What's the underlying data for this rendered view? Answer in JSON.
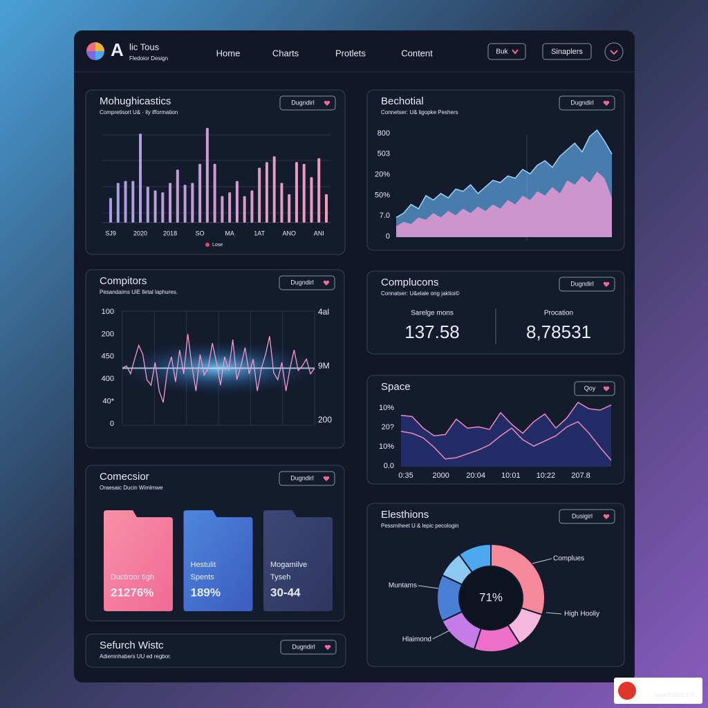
{
  "header": {
    "logo_letter": "A",
    "title": "lic Tous",
    "subtitle": "Fledoior Design",
    "nav": [
      "Home",
      "Charts",
      "Protlets",
      "Content"
    ],
    "buttons": [
      "Buk",
      "Sinaplers"
    ]
  },
  "chart_data": [
    {
      "type": "bar",
      "title": "Mohughicastics",
      "subtitle": "Compretisort U& · ily ifformation",
      "button": "Dugndirl",
      "categories": [
        "SJ9",
        null,
        null,
        null,
        "2020",
        null,
        null,
        null,
        "2018",
        null,
        null,
        null,
        "SO",
        null,
        null,
        null,
        "MA",
        null,
        null,
        null,
        "1AT",
        null,
        null,
        null,
        "ANO",
        null,
        null,
        null,
        "ANI",
        null
      ],
      "series": [
        {
          "name": "Lose",
          "color": "#e8475f",
          "values": [
            26,
            42,
            44,
            44,
            94,
            38,
            34,
            32,
            42,
            56,
            40,
            42,
            62,
            100,
            62,
            28,
            32,
            44,
            28,
            34,
            58,
            64,
            70,
            42,
            30,
            64,
            62,
            48,
            68,
            30
          ]
        }
      ],
      "bar_colors": [
        "#a99ee6",
        "#f49bbb"
      ],
      "ylim": [
        0,
        100
      ],
      "grid": true
    },
    {
      "type": "area",
      "title": "Bechotial",
      "subtitle": "Connetser: U& ligopke Peshers",
      "button": "Dugndirl",
      "y_labels": [
        "800",
        "503",
        "20%",
        "50%",
        "7.0",
        "0"
      ],
      "ylim": [
        0,
        100
      ],
      "series": [
        {
          "fill": "#5fa8e8b0",
          "stroke": "#9fd4f5",
          "values": [
            18,
            22,
            30,
            26,
            38,
            34,
            40,
            36,
            44,
            42,
            48,
            40,
            46,
            52,
            50,
            56,
            54,
            62,
            58,
            66,
            70,
            64,
            74,
            80,
            86,
            78,
            92,
            98,
            88,
            76
          ]
        },
        {
          "fill": "#f29bd8c8",
          "values": [
            10,
            14,
            12,
            18,
            16,
            22,
            18,
            24,
            20,
            26,
            22,
            28,
            24,
            30,
            26,
            34,
            30,
            38,
            34,
            42,
            38,
            46,
            40,
            52,
            48,
            56,
            50,
            60,
            54,
            36
          ]
        }
      ]
    },
    {
      "type": "line",
      "title": "Compitors",
      "subtitle": "Pesandaims UiE lletal laphures.",
      "button": "Dugndirl",
      "y_labels": [
        "100",
        "200",
        "450",
        "400",
        "40*",
        "0"
      ],
      "y2_labels": [
        "4al",
        "9M",
        "200"
      ],
      "ylim": [
        0,
        100
      ],
      "series": [
        {
          "stroke": "#f49bd0",
          "values": [
            50,
            52,
            45,
            58,
            70,
            62,
            40,
            35,
            55,
            30,
            20,
            48,
            60,
            38,
            66,
            45,
            80,
            52,
            30,
            62,
            44,
            50,
            72,
            55,
            35,
            60,
            48,
            75,
            40,
            52,
            68,
            45,
            58,
            30,
            50,
            62,
            78,
            46,
            40,
            55,
            30,
            50,
            66,
            48,
            52,
            58,
            45,
            50
          ]
        }
      ]
    },
    {
      "type": "area",
      "title": "Space",
      "button": "Qoy",
      "y_labels": [
        "10%",
        "20?",
        "10%",
        "0.0"
      ],
      "x_labels": [
        "0:35",
        "2000",
        "20:04",
        "10:01",
        "10:22",
        "207.8"
      ],
      "ylim": [
        0,
        100
      ],
      "series": [
        {
          "fill": "#222c66",
          "stroke": "#f08ac0",
          "values": [
            80,
            78,
            60,
            48,
            50,
            74,
            60,
            62,
            58,
            84,
            66,
            52,
            70,
            82,
            60,
            76,
            100,
            90,
            88,
            96
          ]
        },
        {
          "stroke": "#f08ac0",
          "values": [
            55,
            52,
            45,
            30,
            12,
            14,
            20,
            26,
            34,
            48,
            60,
            42,
            32,
            40,
            48,
            62,
            70,
            52,
            30,
            10
          ]
        }
      ]
    },
    {
      "type": "donut",
      "title": "Elesthions",
      "subtitle": "Pessmiheet U & lepic pecologin",
      "button": "Dusigirl",
      "center_label": "71%",
      "annotations": [
        "Complues",
        "High Hooliy",
        "Hlaimond",
        "Muntams"
      ],
      "values": [
        30,
        11,
        14,
        13,
        14,
        8,
        10
      ],
      "colors": [
        "#f5899a",
        "#f6b8e0",
        "#ef6fc8",
        "#c57be8",
        "#4a7fd6",
        "#8cc8f0",
        "#4da8ee"
      ]
    }
  ],
  "stats": {
    "title": "Complucons",
    "subtitle": "Connatser: U&elale ong jaktioi©",
    "button": "Dugndirl",
    "items": [
      {
        "label": "Sarelge mons",
        "value": "137.58"
      },
      {
        "label": "Procation",
        "value": "8,78531"
      }
    ]
  },
  "cards_panel": {
    "title": "Comecsior",
    "subtitle": "Oraesaic Ducin Wimlmwe",
    "button": "Dugndirl",
    "cards": [
      {
        "label_lines": [
          "Ductroor tigh"
        ],
        "value": "21276%",
        "colors": [
          "#f890a8",
          "#f06a95"
        ]
      },
      {
        "label_lines": [
          "Hestulit",
          "Spents"
        ],
        "value": "189%",
        "colors": [
          "#4f86dc",
          "#3a5cc0"
        ]
      },
      {
        "label_lines": [
          "Mogamilve",
          "Tyseh"
        ],
        "value": "30-44",
        "colors": [
          "#3c4878",
          "#2e3660"
        ]
      }
    ]
  },
  "search_panel": {
    "title": "Sefurch Wistc",
    "subtitle": "Adiemnhabers UU ed regbor.",
    "button": "Dugndirl"
  },
  "watermark": "www.PBIDS.CN"
}
